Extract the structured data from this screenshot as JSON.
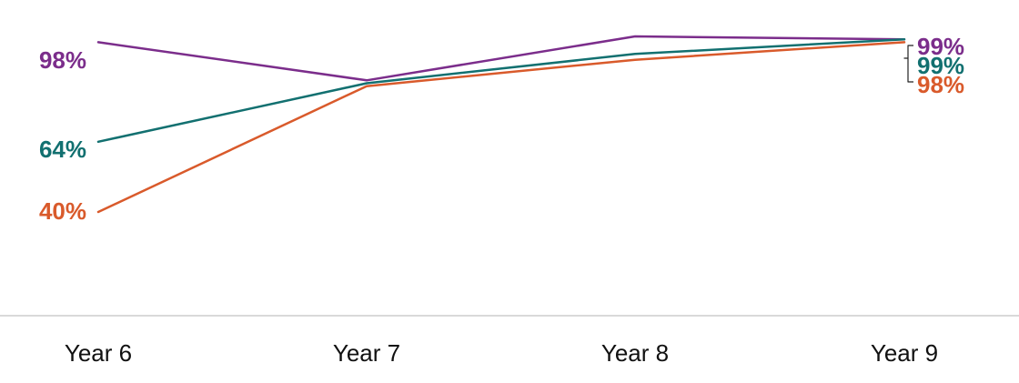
{
  "chart_data": {
    "type": "line",
    "title": "",
    "xlabel": "",
    "ylabel": "",
    "categories": [
      "Year 6",
      "Year 7",
      "Year 8",
      "Year 9"
    ],
    "ylim": [
      0,
      100
    ],
    "grid": false,
    "legend": "none",
    "series": [
      {
        "color": "#7B2D8B",
        "values": [
          98,
          85,
          100,
          99
        ],
        "labels": {
          "start": "98%",
          "end": "99%"
        }
      },
      {
        "color": "#127070",
        "values": [
          64,
          84,
          94,
          99
        ],
        "labels": {
          "start": "64%",
          "end": "99%"
        }
      },
      {
        "color": "#D95A2B",
        "values": [
          40,
          83,
          92,
          98
        ],
        "labels": {
          "start": "40%",
          "end": "98%"
        }
      }
    ],
    "annotations": [
      "bracket grouping the Year 9 end labels"
    ]
  }
}
